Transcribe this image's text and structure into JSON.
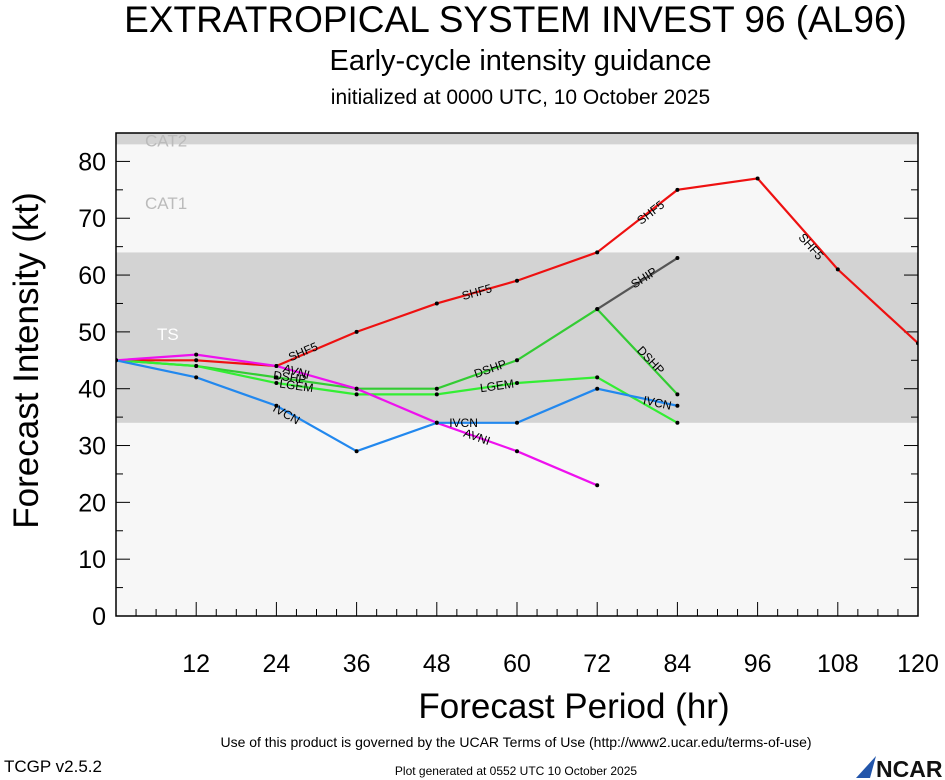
{
  "header": {
    "title": "EXTRATROPICAL SYSTEM INVEST 96 (AL96)",
    "subtitle": "Early-cycle intensity guidance",
    "initialized": "initialized at 0000 UTC, 10 October 2025"
  },
  "footer": {
    "terms": "Use of this product is governed by the UCAR Terms of Use (http://www2.ucar.edu/terms-of-use)",
    "version": "TCGP v2.5.2",
    "generated": "Plot generated at 0552 UTC   10 October 2025",
    "logo_text": "NCAR"
  },
  "chart_data": {
    "type": "line",
    "xlabel": "Forecast Period (hr)",
    "ylabel": "Forecast Intensity (kt)",
    "xlim": [
      0,
      120
    ],
    "ylim": [
      0,
      85
    ],
    "xticks": [
      12,
      24,
      36,
      48,
      60,
      72,
      84,
      96,
      108,
      120
    ],
    "yticks": [
      0,
      10,
      20,
      30,
      40,
      50,
      60,
      70,
      80
    ],
    "bands": [
      {
        "label": "TS",
        "from": 34,
        "to": 64,
        "color": "#d3d3d3",
        "label_y": 50
      },
      {
        "label": "CAT1",
        "from": 64,
        "to": 83,
        "color": "#f7f7f7",
        "label_y": 73
      },
      {
        "label": "CAT2",
        "from": 83,
        "to": 85,
        "color": "#d3d3d3",
        "label_y": 84
      }
    ],
    "series": [
      {
        "name": "SHF5",
        "color": "#ee1111",
        "x": [
          0,
          12,
          24,
          36,
          48,
          60,
          72,
          84,
          96,
          108,
          120
        ],
        "y": [
          45,
          45,
          44,
          50,
          55,
          59,
          64,
          75,
          77,
          61,
          48
        ],
        "labels_at": [
          [
            28,
            46.5
          ],
          [
            54,
            57
          ],
          [
            80,
            71
          ],
          [
            104,
            65
          ]
        ]
      },
      {
        "name": "SHIP",
        "color": "#555555",
        "x": [
          72,
          84
        ],
        "y": [
          54,
          63
        ],
        "labels_at": [
          [
            79,
            59.5
          ]
        ]
      },
      {
        "name": "DSHP",
        "color": "#33cc33",
        "x": [
          0,
          12,
          24,
          36,
          48,
          60,
          72,
          84
        ],
        "y": [
          45,
          44,
          42,
          40,
          40,
          45,
          54,
          39
        ],
        "labels_at": [
          [
            26,
            42
          ],
          [
            56,
            43.5
          ],
          [
            80,
            45
          ]
        ]
      },
      {
        "name": "LGEM",
        "color": "#33ee33",
        "x": [
          0,
          12,
          24,
          36,
          48,
          60,
          72,
          84
        ],
        "y": [
          45,
          44,
          41,
          39,
          39,
          41,
          42,
          34
        ],
        "labels_at": [
          [
            27,
            40.5
          ],
          [
            57,
            40.5
          ]
        ]
      },
      {
        "name": "AVNI",
        "color": "#ee11ee",
        "x": [
          0,
          12,
          24,
          36,
          48,
          60,
          72
        ],
        "y": [
          45,
          46,
          44,
          40,
          34,
          29,
          23
        ],
        "labels_at": [
          [
            27,
            43
          ],
          [
            54,
            31.5
          ]
        ]
      },
      {
        "name": "IVCN",
        "color": "#2288ee",
        "x": [
          0,
          12,
          24,
          36,
          48,
          60,
          72,
          84
        ],
        "y": [
          45,
          42,
          37,
          29,
          34,
          34,
          40,
          37
        ],
        "labels_at": [
          [
            25.5,
            35.5
          ],
          [
            52,
            34
          ],
          [
            81,
            37.5
          ]
        ]
      }
    ]
  }
}
